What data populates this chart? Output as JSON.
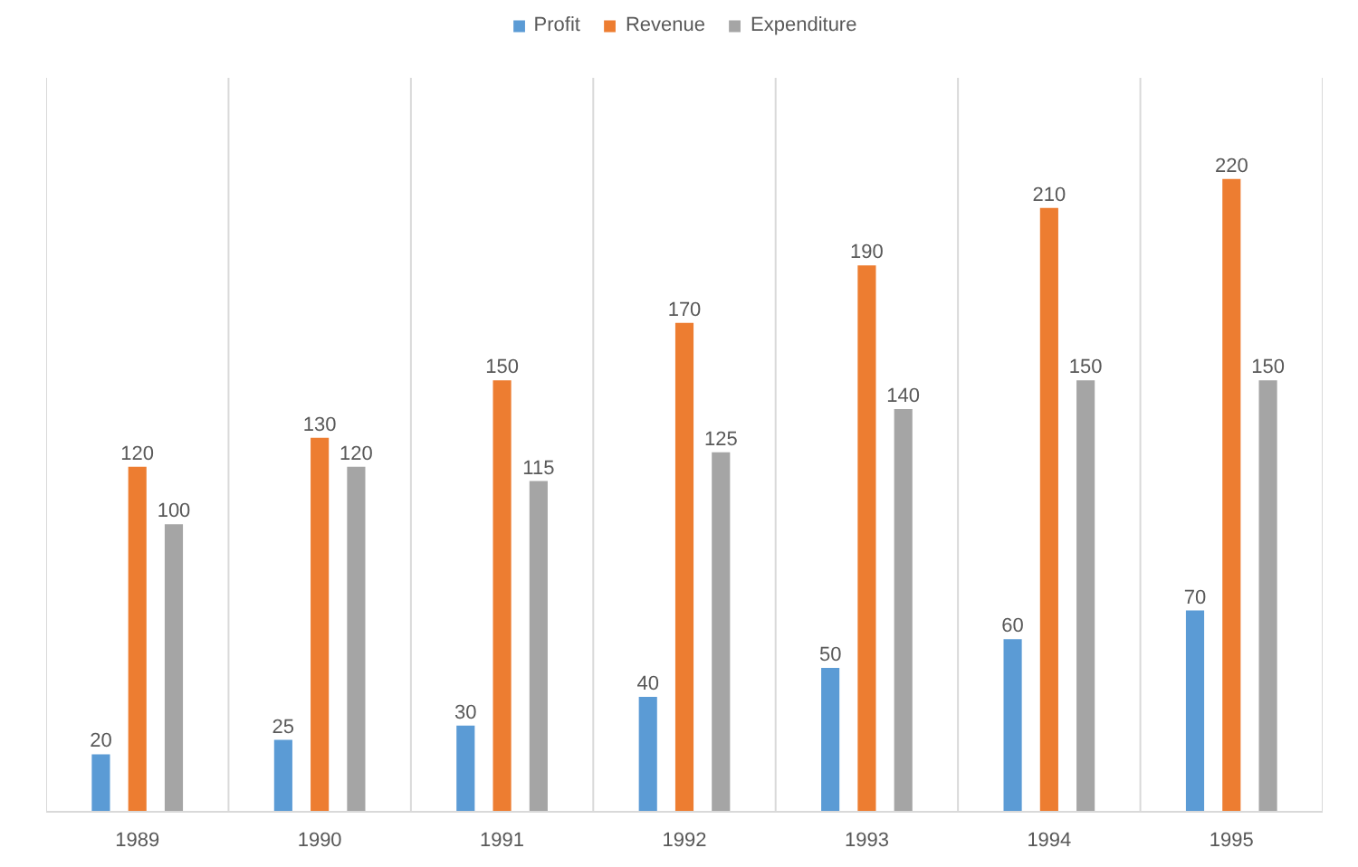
{
  "chart_data": {
    "type": "bar",
    "categories": [
      "1989",
      "1990",
      "1991",
      "1992",
      "1993",
      "1994",
      "1995"
    ],
    "series": [
      {
        "name": "Profit",
        "color": "#5b9bd5",
        "values": [
          20,
          25,
          30,
          40,
          50,
          60,
          70
        ]
      },
      {
        "name": "Revenue",
        "color": "#ed7d31",
        "values": [
          120,
          130,
          150,
          170,
          190,
          210,
          220
        ]
      },
      {
        "name": "Expenditure",
        "color": "#a5a5a5",
        "values": [
          100,
          120,
          115,
          125,
          140,
          150,
          150
        ]
      }
    ],
    "data_labels": true,
    "grid": "x",
    "legend": "top"
  }
}
